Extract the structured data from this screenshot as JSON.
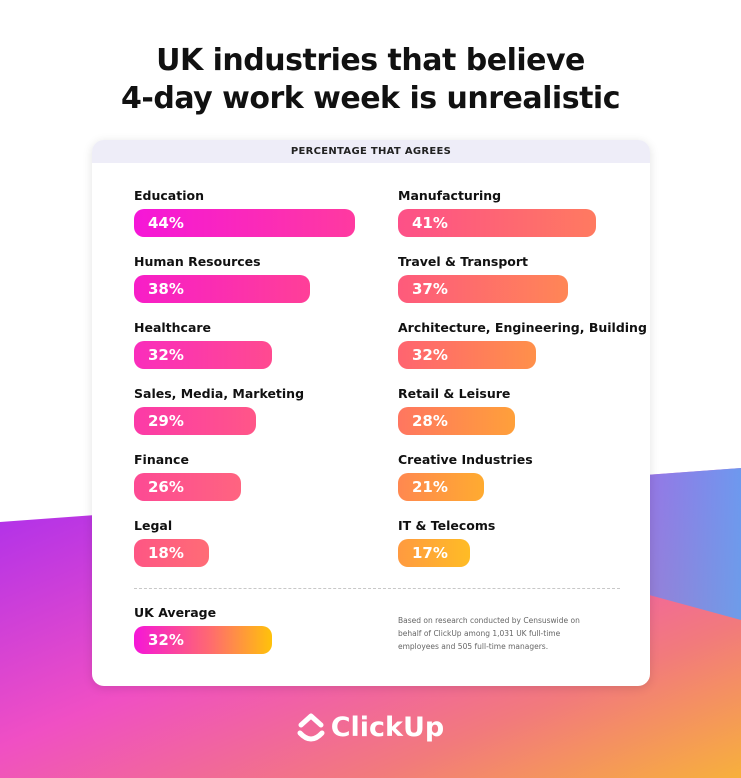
{
  "title_line1": "UK industries that believe",
  "title_line2": "4-day work week is unrealistic",
  "logo_text": "ClickUp",
  "chart_data": {
    "type": "bar",
    "orientation": "horizontal",
    "subtitle": "PERCENTAGE THAT AGREES",
    "unit": "%",
    "left": [
      {
        "label": "Education",
        "value": 44,
        "display": "44%",
        "c1": "#f516d8",
        "c2": "#ff3aa0"
      },
      {
        "label": "Human Resources",
        "value": 38,
        "display": "38%",
        "c1": "#f71ec8",
        "c2": "#ff3f98"
      },
      {
        "label": "Healthcare",
        "value": 32,
        "display": "32%",
        "c1": "#fa2dbc",
        "c2": "#ff4a90"
      },
      {
        "label": "Sales, Media, Marketing",
        "value": 29,
        "display": "29%",
        "c1": "#fc3aa8",
        "c2": "#ff5688"
      },
      {
        "label": "Finance",
        "value": 26,
        "display": "26%",
        "c1": "#fd4a94",
        "c2": "#ff6480"
      },
      {
        "label": "Legal",
        "value": 18,
        "display": "18%",
        "c1": "#fe5684",
        "c2": "#ff6c76"
      }
    ],
    "right": [
      {
        "label": "Manufacturing",
        "value": 41,
        "display": "41%",
        "c1": "#fd5088",
        "c2": "#ff7a60"
      },
      {
        "label": "Travel & Transport",
        "value": 37,
        "display": "37%",
        "c1": "#fe5a7c",
        "c2": "#ff8656"
      },
      {
        "label": "Architecture, Engineering, Building",
        "value": 32,
        "display": "32%",
        "c1": "#ff6470",
        "c2": "#ff904a"
      },
      {
        "label": "Retail & Leisure",
        "value": 28,
        "display": "28%",
        "c1": "#ff7660",
        "c2": "#ffa03a"
      },
      {
        "label": "Creative Industries",
        "value": 21,
        "display": "21%",
        "c1": "#ff8850",
        "c2": "#ffab30"
      },
      {
        "label": "IT & Telecoms",
        "value": 17,
        "display": "17%",
        "c1": "#ff9a40",
        "c2": "#ffbc25"
      }
    ],
    "average": {
      "label": "UK Average",
      "value": 32,
      "display": "32%",
      "c1": "#f516d8",
      "c2": "#ffc20a"
    },
    "note": "Based on research conducted by Censuswide on behalf of ClickUp among 1,031 UK full-time employees and 505 full-time managers."
  }
}
